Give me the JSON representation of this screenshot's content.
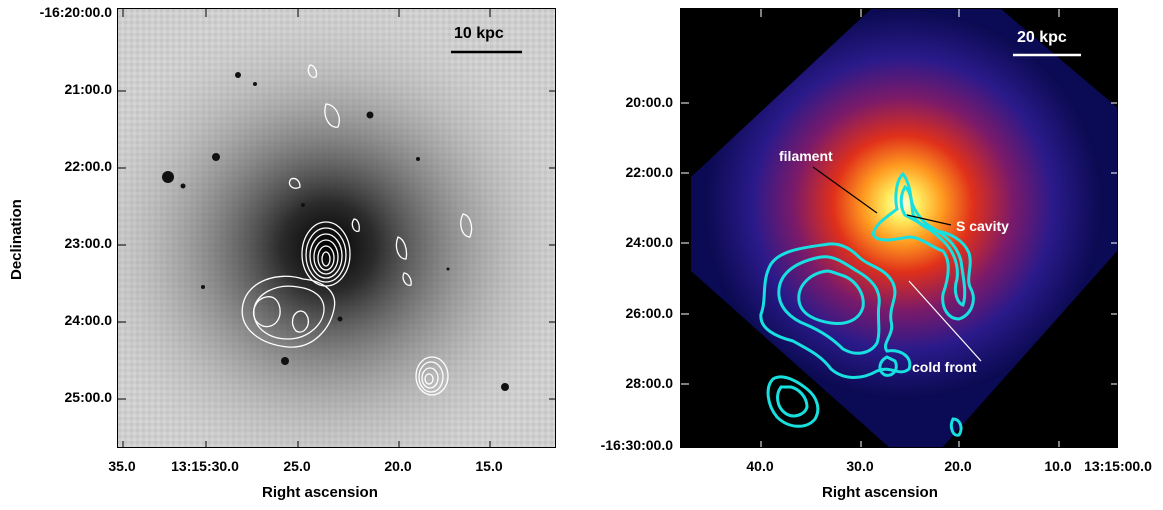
{
  "left_panel": {
    "y_ticks": [
      "-16:20:00.0",
      "21:00.0",
      "22:00.0",
      "23:00.0",
      "24:00.0",
      "25:00.0"
    ],
    "x_ticks": [
      "35.0",
      "13:15:30.0",
      "25.0",
      "20.0",
      "15.0"
    ],
    "xlabel": "Right ascension",
    "ylabel": "Declination",
    "scale_bar": "10 kpc"
  },
  "right_panel": {
    "y_ticks": [
      "20:00.0",
      "22:00.0",
      "24:00.0",
      "26:00.0",
      "28:00.0",
      "-16:30:00.0"
    ],
    "x_ticks": [
      "40.0",
      "30.0",
      "20.0",
      "10.0",
      "13:15:00.0"
    ],
    "xlabel": "Right ascension",
    "scale_bar": "20 kpc",
    "annotations": {
      "filament": "filament",
      "s_cavity": "S cavity",
      "cold_front": "cold front"
    }
  },
  "colors": {
    "contour_left": "#ffffff",
    "contour_right": "#19e0e0",
    "background_right": "#000000"
  }
}
